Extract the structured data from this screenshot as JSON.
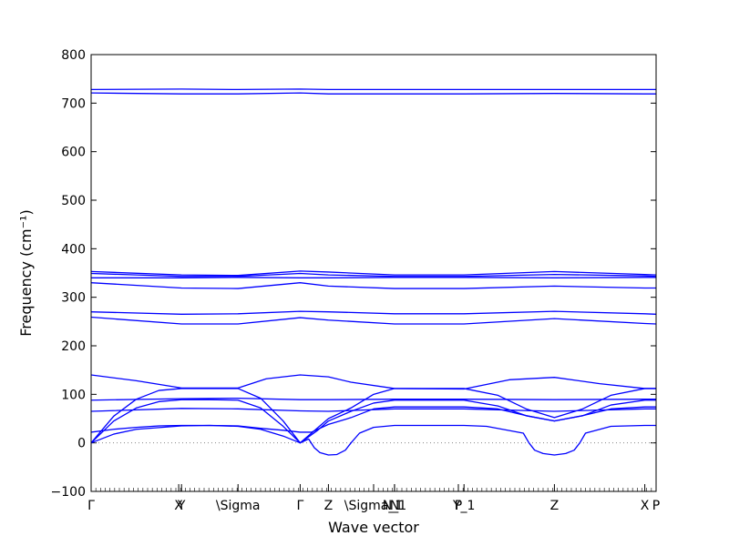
{
  "chart_data": {
    "type": "line",
    "title": "",
    "xlabel": "Wave vector",
    "ylabel": "Frequency (cm⁻¹)",
    "ylim": [
      -100,
      800
    ],
    "y_ticks": [
      -100,
      0,
      100,
      200,
      300,
      400,
      500,
      600,
      700,
      800
    ],
    "x_range": [
      0,
      10
    ],
    "special_points": [
      {
        "label": "Γ",
        "x": 0.0
      },
      {
        "label": "X",
        "x": 1.55
      },
      {
        "label": "Y",
        "x": 1.6
      },
      {
        "label": "\\Sigma",
        "x": 2.6
      },
      {
        "label": "Γ",
        "x": 3.7
      },
      {
        "label": "Z",
        "x": 4.2
      },
      {
        "label": "\\Sigma_1",
        "x": 5.0
      },
      {
        "label": "N",
        "x": 5.37
      },
      {
        "label": "N_1",
        "x": 5.37
      },
      {
        "label": "P",
        "x": 6.5
      },
      {
        "label": "Y_1",
        "x": 6.6
      },
      {
        "label": "Z",
        "x": 8.2
      },
      {
        "label": "X",
        "x": 9.8
      },
      {
        "label": "P",
        "x": 10.0
      }
    ],
    "zero_line": true,
    "line_color": "#0000ff",
    "series": [
      {
        "x": [
          0,
          1.6,
          2.6,
          3.7,
          4.2,
          5.37,
          6.6,
          8.2,
          9.8,
          10
        ],
        "values": [
          728,
          729,
          728,
          729,
          728,
          728,
          728,
          728,
          728,
          728
        ]
      },
      {
        "x": [
          0,
          1.6,
          2.6,
          3.7,
          4.2,
          5.37,
          6.6,
          8.2,
          9.8,
          10
        ],
        "values": [
          721,
          719,
          719,
          721,
          719,
          719,
          719,
          720,
          719,
          719
        ]
      },
      {
        "x": [
          0,
          1.6,
          2.6,
          3.7,
          4.2,
          5.37,
          6.6,
          8.2,
          9.8,
          10
        ],
        "values": [
          353,
          346,
          345,
          354,
          352,
          346,
          346,
          353,
          347,
          346
        ]
      },
      {
        "x": [
          0,
          1.6,
          2.6,
          3.7,
          4.2,
          5.37,
          6.6,
          8.2,
          9.8,
          10
        ],
        "values": [
          349,
          343,
          343,
          349,
          346,
          343,
          343,
          347,
          344,
          343
        ]
      },
      {
        "x": [
          0,
          1.6,
          2.6,
          3.7,
          4.2,
          5.37,
          6.6,
          8.2,
          9.8,
          10
        ],
        "values": [
          340,
          340,
          341,
          340,
          340,
          341,
          341,
          340,
          341,
          341
        ]
      },
      {
        "x": [
          0,
          1.6,
          2.6,
          3.7,
          4.2,
          5.37,
          6.6,
          8.2,
          9.8,
          10
        ],
        "values": [
          330,
          319,
          318,
          330,
          323,
          318,
          318,
          323,
          319,
          319
        ]
      },
      {
        "x": [
          0,
          1.6,
          2.6,
          3.7,
          4.2,
          5.37,
          6.6,
          8.2,
          9.8,
          10
        ],
        "values": [
          270,
          265,
          266,
          271,
          270,
          266,
          266,
          271,
          266,
          265
        ]
      },
      {
        "x": [
          0,
          1.6,
          2.6,
          3.7,
          4.2,
          5.37,
          6.6,
          8.2,
          9.8,
          10
        ],
        "values": [
          259,
          245,
          245,
          258,
          253,
          245,
          245,
          256,
          246,
          245
        ]
      },
      {
        "x": [
          0,
          0.8,
          1.6,
          2.6,
          3.1,
          3.7,
          4.2,
          4.6,
          5.37,
          6.6,
          7.4,
          8.2,
          9.0,
          9.8,
          10
        ],
        "values": [
          140,
          128,
          113,
          113,
          132,
          140,
          136,
          125,
          112,
          111,
          130,
          135,
          122,
          112,
          112
        ]
      },
      {
        "x": [
          0,
          1.6,
          2.6,
          3.7,
          4.2,
          5.37,
          6.6,
          8.2,
          9.8,
          10
        ],
        "values": [
          88,
          91,
          92,
          89,
          89,
          90,
          90,
          89,
          90,
          90
        ]
      },
      {
        "x": [
          0,
          1.6,
          2.6,
          3.7,
          4.2,
          5.37,
          6.6,
          8.2,
          9.8,
          10
        ],
        "values": [
          65,
          71,
          70,
          66,
          65,
          70,
          70,
          65,
          70,
          70
        ]
      },
      {
        "x": [
          0,
          0.4,
          0.8,
          1.2,
          1.6,
          2.1,
          2.6,
          3.0,
          3.4,
          3.7,
          4.0,
          4.2,
          4.6,
          5.0,
          5.37,
          6.0,
          6.6,
          7.2,
          7.7,
          8.2,
          8.7,
          9.2,
          9.8,
          10
        ],
        "values": [
          0,
          55,
          90,
          108,
          112,
          112,
          112,
          92,
          45,
          0,
          30,
          50,
          72,
          100,
          112,
          112,
          112,
          98,
          70,
          52,
          70,
          98,
          112,
          112
        ]
      },
      {
        "x": [
          0,
          0.4,
          0.8,
          1.2,
          1.6,
          2.1,
          2.6,
          3.0,
          3.4,
          3.7,
          4.0,
          4.2,
          4.6,
          5.0,
          5.37,
          6.0,
          6.6,
          7.2,
          7.7,
          8.2,
          8.7,
          9.2,
          9.8,
          10
        ],
        "values": [
          0,
          45,
          72,
          85,
          89,
          89,
          88,
          72,
          34,
          0,
          25,
          45,
          65,
          82,
          88,
          88,
          88,
          76,
          56,
          45,
          56,
          78,
          88,
          88
        ]
      },
      {
        "x": [
          0,
          0.4,
          0.8,
          1.2,
          1.6,
          2.1,
          2.6,
          3.0,
          3.4,
          3.7,
          3.9,
          4.2,
          4.6,
          5.0,
          5.37,
          6.0,
          6.6,
          7.2,
          7.7,
          8.2,
          8.7,
          9.2,
          9.8,
          10
        ],
        "values": [
          22,
          28,
          32,
          35,
          36,
          36,
          35,
          30,
          26,
          22,
          22,
          38,
          52,
          70,
          74,
          74,
          74,
          70,
          56,
          45,
          56,
          70,
          74,
          74
        ]
      },
      {
        "x": [
          0,
          0.4,
          0.8,
          1.6,
          2.1,
          2.6,
          3.0,
          3.4,
          3.7,
          3.85,
          3.95,
          4.05,
          4.2,
          4.35,
          4.5,
          4.6,
          4.75,
          5.0,
          5.37,
          6.0,
          6.6,
          7.0,
          7.65,
          7.75,
          7.85,
          8.0,
          8.2,
          8.4,
          8.55,
          8.65,
          8.75,
          9.2,
          9.8,
          10
        ],
        "values": [
          0,
          18,
          28,
          35,
          36,
          34,
          28,
          14,
          0,
          8,
          -10,
          -20,
          -25,
          -24,
          -15,
          0,
          20,
          32,
          36,
          36,
          36,
          34,
          20,
          0,
          -15,
          -22,
          -25,
          -22,
          -15,
          0,
          20,
          34,
          36,
          36
        ]
      }
    ]
  }
}
